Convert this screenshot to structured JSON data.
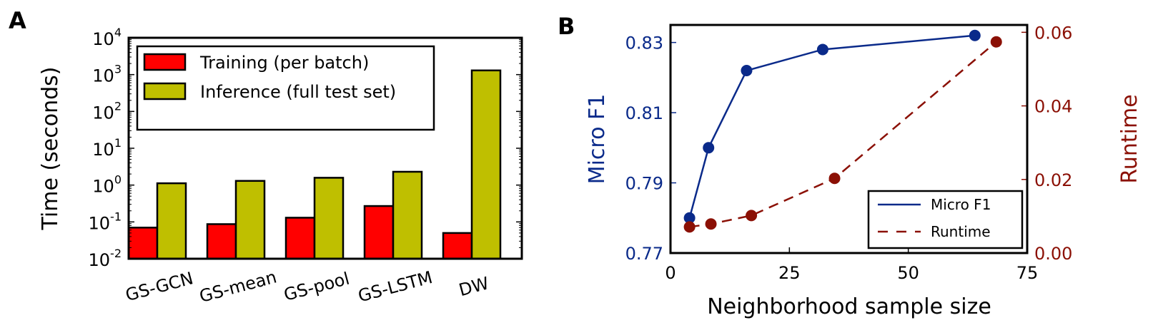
{
  "chart_data": [
    {
      "panel_label": "A",
      "type": "bar",
      "ylabel": "Time (seconds)",
      "yscale": "log",
      "ylim": [
        0.01,
        10000
      ],
      "yticks": [
        "10^-2",
        "10^-1",
        "10^0",
        "10^1",
        "10^2",
        "10^3",
        "10^4"
      ],
      "categories": [
        "GS-GCN",
        "GS-mean",
        "GS-pool",
        "GS-LSTM",
        "DW"
      ],
      "series": [
        {
          "name": "Training (per batch)",
          "color": "#ff0000",
          "values": [
            0.07,
            0.087,
            0.13,
            0.27,
            0.05
          ]
        },
        {
          "name": "Inference (full test set)",
          "color": "#bfbf00",
          "values": [
            1.12,
            1.3,
            1.58,
            2.3,
            1300
          ]
        }
      ],
      "legend": "top-left"
    },
    {
      "panel_label": "B",
      "type": "line",
      "xlabel": "Neighborhood sample size",
      "ylabel_left": "Micro F1",
      "ylabel_right": "Runtime",
      "xlim": [
        0,
        75
      ],
      "xticks": [
        "0",
        "25",
        "50",
        "75"
      ],
      "ylim_left": [
        0.77,
        0.835
      ],
      "yticks_left": [
        "0.77",
        "0.79",
        "0.81",
        "0.83"
      ],
      "ylim_right": [
        0.0,
        0.062
      ],
      "yticks_right": [
        "0.00",
        "0.02",
        "0.04",
        "0.06"
      ],
      "series": [
        {
          "name": "Micro F1",
          "axis": "left",
          "style": "solid",
          "color": "#0a2a8a",
          "x": [
            4,
            8,
            16,
            32,
            64
          ],
          "y": [
            0.78,
            0.8,
            0.822,
            0.828,
            0.832
          ]
        },
        {
          "name": "Runtime",
          "axis": "right",
          "style": "dashed",
          "color": "#8b1005",
          "x": [
            4,
            8.5,
            17,
            34.5,
            68.5
          ],
          "y": [
            0.0071,
            0.0079,
            0.0102,
            0.0203,
            0.0574
          ]
        }
      ],
      "legend": "bottom-right"
    }
  ]
}
